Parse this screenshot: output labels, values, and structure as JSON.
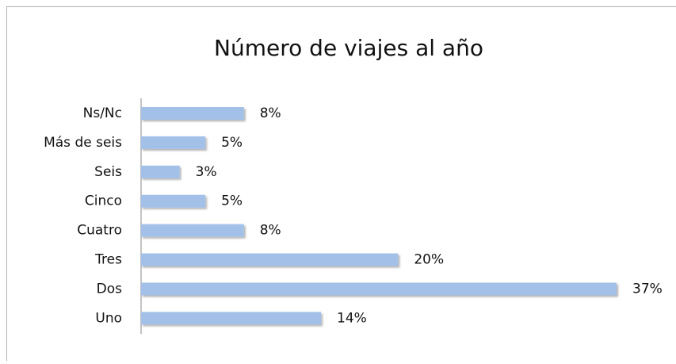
{
  "chart_data": {
    "type": "hbar",
    "title": "Número de viajes al año",
    "categories": [
      "Ns/Nc",
      "Más de seis",
      "Seis",
      "Cinco",
      "Cuatro",
      "Tres",
      "Dos",
      "Uno"
    ],
    "values": [
      8,
      5,
      3,
      5,
      8,
      20,
      37,
      14
    ],
    "value_labels": [
      "8%",
      "5%",
      "3%",
      "5%",
      "8%",
      "20%",
      "37%",
      "14%"
    ],
    "color": "#a3c1e8"
  }
}
